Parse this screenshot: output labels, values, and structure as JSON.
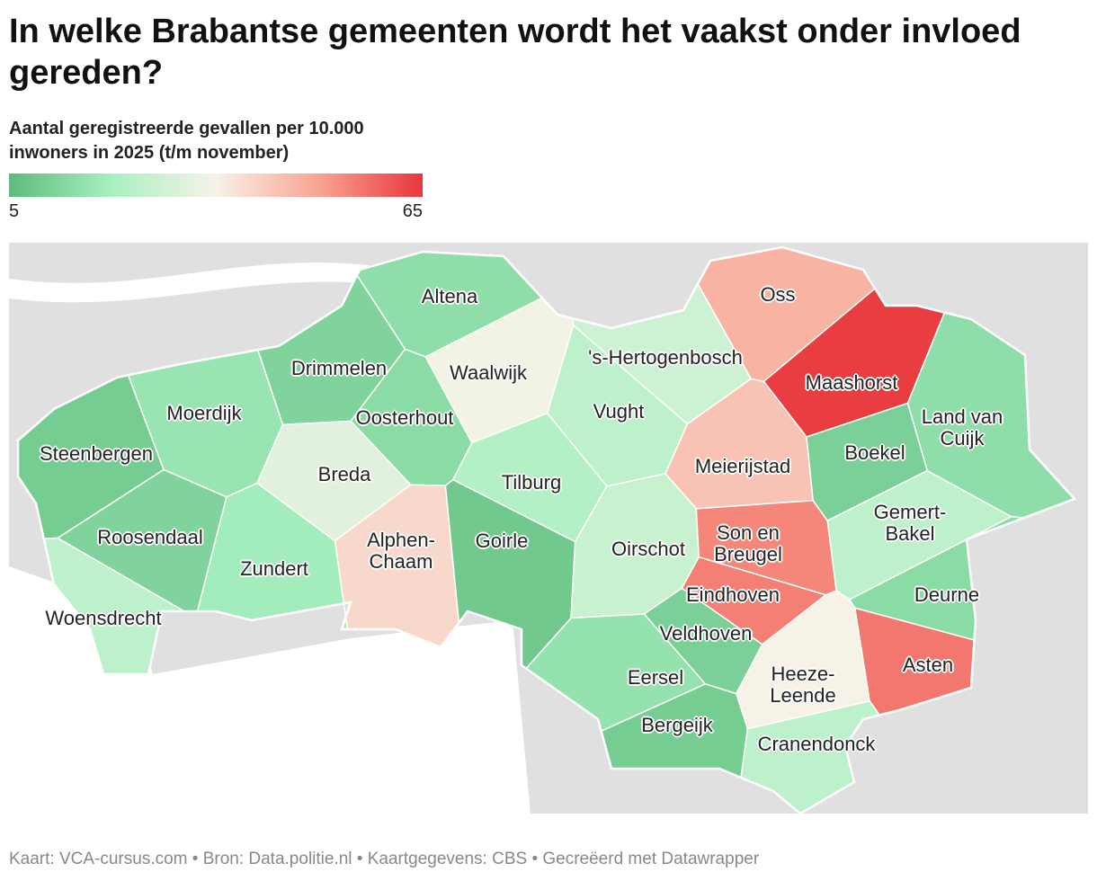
{
  "header": {
    "title": "In welke Brabantse gemeenten wordt het vaakst onder invloed gereden?",
    "subtitle": "Aantal geregistreerde gevallen per 10.000 inwoners in 2025 (t/m november)"
  },
  "legend": {
    "min": 5,
    "max": 65,
    "colors": [
      "#5dbb7b",
      "#a8f0c0",
      "#f7f2e8",
      "#f9a391",
      "#e8363c"
    ]
  },
  "regions": [
    {
      "name": "Altena",
      "value": 15
    },
    {
      "name": "Drimmelen",
      "value": 12
    },
    {
      "name": "Waalwijk",
      "value": 34
    },
    {
      "name": "'s-Hertogenbosch",
      "value": 27
    },
    {
      "name": "Oss",
      "value": 47
    },
    {
      "name": "Maashorst",
      "value": 64
    },
    {
      "name": "Land van\nCuijk",
      "value": 15
    },
    {
      "name": "Moerdijk",
      "value": 17
    },
    {
      "name": "Oosterhout",
      "value": 14
    },
    {
      "name": "Vught",
      "value": 24
    },
    {
      "name": "Boekel",
      "value": 11
    },
    {
      "name": "Steenbergen",
      "value": 10
    },
    {
      "name": "Breda",
      "value": 31
    },
    {
      "name": "Tilburg",
      "value": 22
    },
    {
      "name": "Meierijstad",
      "value": 44
    },
    {
      "name": "Gemert-\nBakel",
      "value": 24
    },
    {
      "name": "Roosendaal",
      "value": 12
    },
    {
      "name": "Alphen-\nChaam",
      "value": 40
    },
    {
      "name": "Goirle",
      "value": 9
    },
    {
      "name": "Son en\nBreugel",
      "value": 54
    },
    {
      "name": "Oirschot",
      "value": 26
    },
    {
      "name": "Zundert",
      "value": 19
    },
    {
      "name": "Eindhoven",
      "value": 55
    },
    {
      "name": "Deurne",
      "value": 14
    },
    {
      "name": "Woensdrecht",
      "value": 24
    },
    {
      "name": "Veldhoven",
      "value": 11
    },
    {
      "name": "Asten",
      "value": 56
    },
    {
      "name": "Eersel",
      "value": 16
    },
    {
      "name": "Heeze-\nLeende",
      "value": 35
    },
    {
      "name": "Bergeijk",
      "value": 10
    },
    {
      "name": "Cranendonck",
      "value": 24
    }
  ],
  "footer": "Kaart: VCA-cursus.com • Bron: Data.politie.nl • Kaartgegevens: CBS • Gecreëerd met Datawrapper"
}
